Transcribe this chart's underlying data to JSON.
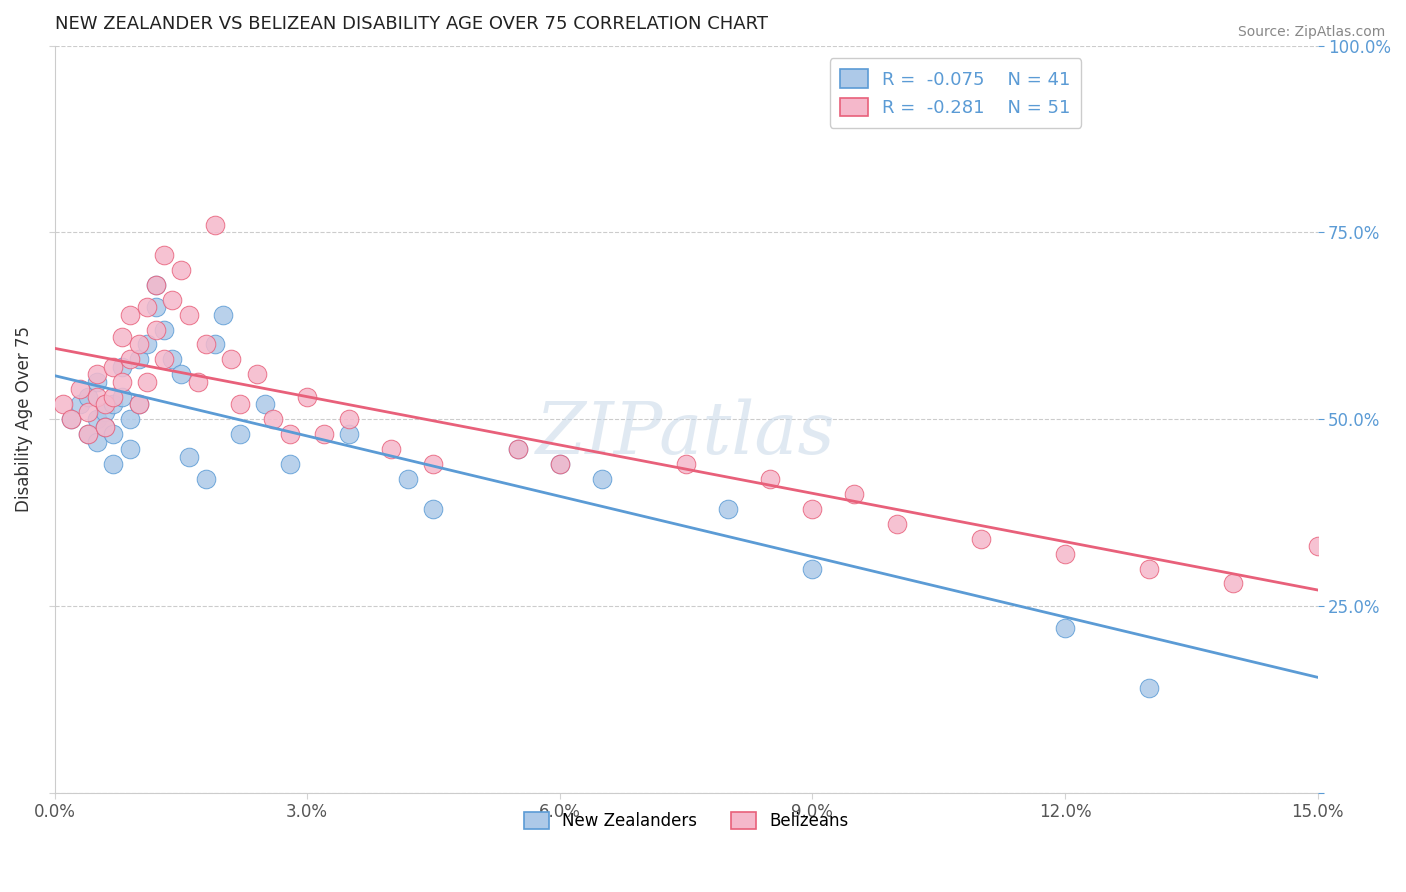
{
  "title": "NEW ZEALANDER VS BELIZEAN DISABILITY AGE OVER 75 CORRELATION CHART",
  "source": "Source: ZipAtlas.com",
  "ylabel": "Disability Age Over 75",
  "xlim": [
    0.0,
    0.15
  ],
  "ylim": [
    0.0,
    1.0
  ],
  "xticks": [
    0.0,
    0.03,
    0.06,
    0.09,
    0.12,
    0.15
  ],
  "xticklabels": [
    "0.0%",
    "3.0%",
    "6.0%",
    "9.0%",
    "12.0%",
    "15.0%"
  ],
  "yticks": [
    0.0,
    0.25,
    0.5,
    0.75,
    1.0
  ],
  "yticklabels_right": [
    "",
    "25.0%",
    "50.0%",
    "75.0%",
    "100.0%"
  ],
  "blue_R": -0.075,
  "blue_N": 41,
  "pink_R": -0.281,
  "pink_N": 51,
  "blue_color": "#adc9e8",
  "pink_color": "#f5b8cb",
  "blue_line_color": "#5b9bd5",
  "pink_line_color": "#e8607a",
  "legend_label_blue": "New Zealanders",
  "legend_label_pink": "Belizeans",
  "watermark": "ZIPatlas",
  "blue_scatter_x": [
    0.002,
    0.003,
    0.004,
    0.004,
    0.005,
    0.005,
    0.005,
    0.006,
    0.006,
    0.007,
    0.007,
    0.007,
    0.008,
    0.008,
    0.009,
    0.009,
    0.01,
    0.01,
    0.011,
    0.012,
    0.012,
    0.013,
    0.014,
    0.015,
    0.016,
    0.018,
    0.019,
    0.02,
    0.022,
    0.025,
    0.028,
    0.035,
    0.042,
    0.045,
    0.055,
    0.06,
    0.065,
    0.08,
    0.09,
    0.12,
    0.13
  ],
  "blue_scatter_y": [
    0.5,
    0.52,
    0.48,
    0.53,
    0.5,
    0.47,
    0.55,
    0.51,
    0.49,
    0.52,
    0.48,
    0.44,
    0.53,
    0.57,
    0.5,
    0.46,
    0.52,
    0.58,
    0.6,
    0.65,
    0.68,
    0.62,
    0.58,
    0.56,
    0.45,
    0.42,
    0.6,
    0.64,
    0.48,
    0.52,
    0.44,
    0.48,
    0.42,
    0.38,
    0.46,
    0.44,
    0.42,
    0.38,
    0.3,
    0.22,
    0.14
  ],
  "pink_scatter_x": [
    0.001,
    0.002,
    0.003,
    0.004,
    0.004,
    0.005,
    0.005,
    0.006,
    0.006,
    0.007,
    0.007,
    0.008,
    0.008,
    0.009,
    0.009,
    0.01,
    0.01,
    0.011,
    0.011,
    0.012,
    0.012,
    0.013,
    0.013,
    0.014,
    0.015,
    0.016,
    0.017,
    0.018,
    0.019,
    0.021,
    0.022,
    0.024,
    0.026,
    0.028,
    0.03,
    0.032,
    0.035,
    0.04,
    0.045,
    0.055,
    0.06,
    0.075,
    0.085,
    0.09,
    0.095,
    0.1,
    0.11,
    0.12,
    0.13,
    0.14,
    0.15
  ],
  "pink_scatter_y": [
    0.52,
    0.5,
    0.54,
    0.51,
    0.48,
    0.53,
    0.56,
    0.52,
    0.49,
    0.53,
    0.57,
    0.55,
    0.61,
    0.58,
    0.64,
    0.52,
    0.6,
    0.55,
    0.65,
    0.62,
    0.68,
    0.58,
    0.72,
    0.66,
    0.7,
    0.64,
    0.55,
    0.6,
    0.76,
    0.58,
    0.52,
    0.56,
    0.5,
    0.48,
    0.53,
    0.48,
    0.5,
    0.46,
    0.44,
    0.46,
    0.44,
    0.44,
    0.42,
    0.38,
    0.4,
    0.36,
    0.34,
    0.32,
    0.3,
    0.28,
    0.33
  ]
}
